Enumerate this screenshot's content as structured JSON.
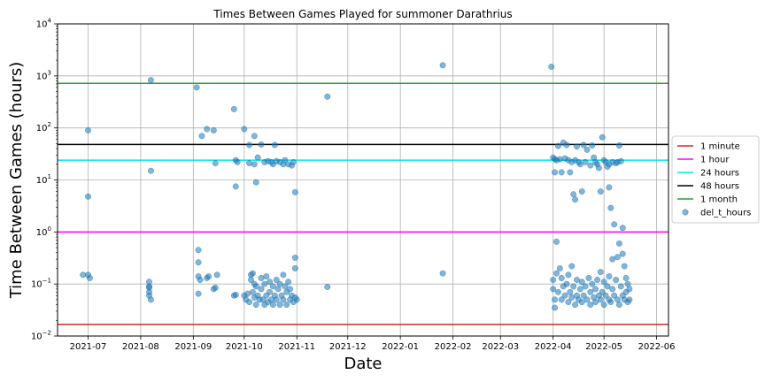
{
  "chart_data": {
    "type": "scatter",
    "title": "Times Between Games Played for summoner Darathrius",
    "xlabel": "Date",
    "ylabel": "Time Between Games (hours)",
    "yscale": "log",
    "ylim": [
      0.01,
      10000
    ],
    "xlim": [
      "2021-06-13",
      "2022-06-08"
    ],
    "grid": true,
    "legend_position": "right",
    "x_ticks": [
      "2021-07",
      "2021-08",
      "2021-09",
      "2021-10",
      "2021-11",
      "2021-12",
      "2022-01",
      "2022-02",
      "2022-03",
      "2022-04",
      "2022-05",
      "2022-06"
    ],
    "y_ticks": [
      {
        "value": 0.01,
        "base": "10",
        "exp": "−2"
      },
      {
        "value": 0.1,
        "base": "10",
        "exp": "−1"
      },
      {
        "value": 1,
        "base": "10",
        "exp": "0"
      },
      {
        "value": 10,
        "base": "10",
        "exp": "1"
      },
      {
        "value": 100,
        "base": "10",
        "exp": "2"
      },
      {
        "value": 1000,
        "base": "10",
        "exp": "3"
      },
      {
        "value": 10000,
        "base": "10",
        "exp": "4"
      }
    ],
    "reference_lines": [
      {
        "name": "1 minute",
        "y": 0.0167,
        "color": "#d62728"
      },
      {
        "name": "1 hour",
        "y": 1,
        "color": "#ff00ff"
      },
      {
        "name": "24 hours",
        "y": 24,
        "color": "#00e5ee"
      },
      {
        "name": "48 hours",
        "y": 48,
        "color": "#000000"
      },
      {
        "name": "1 month",
        "y": 720,
        "color": "#2ca02c"
      }
    ],
    "series": [
      {
        "name": "del_t_hours",
        "color": "#1f77b4",
        "points": [
          {
            "x": "2021-06-28",
            "y": 0.15
          },
          {
            "x": "2021-07-01",
            "y": 90
          },
          {
            "x": "2021-07-01",
            "y": 4.8
          },
          {
            "x": "2021-07-01",
            "y": 0.15
          },
          {
            "x": "2021-07-02",
            "y": 0.13
          },
          {
            "x": "2021-08-07",
            "y": 830
          },
          {
            "x": "2021-08-07",
            "y": 15
          },
          {
            "x": "2021-08-06",
            "y": 0.11
          },
          {
            "x": "2021-08-06",
            "y": 0.09
          },
          {
            "x": "2021-08-06",
            "y": 0.085
          },
          {
            "x": "2021-08-06",
            "y": 0.07
          },
          {
            "x": "2021-08-06",
            "y": 0.06
          },
          {
            "x": "2021-08-07",
            "y": 0.05
          },
          {
            "x": "2021-09-03",
            "y": 600
          },
          {
            "x": "2021-09-06",
            "y": 70
          },
          {
            "x": "2021-09-09",
            "y": 95
          },
          {
            "x": "2021-09-13",
            "y": 90
          },
          {
            "x": "2021-09-14",
            "y": 21
          },
          {
            "x": "2021-09-04",
            "y": 0.45
          },
          {
            "x": "2021-09-04",
            "y": 0.26
          },
          {
            "x": "2021-09-04",
            "y": 0.14
          },
          {
            "x": "2021-09-05",
            "y": 0.12
          },
          {
            "x": "2021-09-04",
            "y": 0.065
          },
          {
            "x": "2021-09-09",
            "y": 0.13
          },
          {
            "x": "2021-09-10",
            "y": 0.14
          },
          {
            "x": "2021-09-13",
            "y": 0.08
          },
          {
            "x": "2021-09-14",
            "y": 0.085
          },
          {
            "x": "2021-09-15",
            "y": 0.15
          },
          {
            "x": "2021-09-25",
            "y": 230
          },
          {
            "x": "2021-09-26",
            "y": 24
          },
          {
            "x": "2021-09-27",
            "y": 22
          },
          {
            "x": "2021-09-26",
            "y": 7.5
          },
          {
            "x": "2021-09-25",
            "y": 0.06
          },
          {
            "x": "2021-09-26",
            "y": 0.062
          },
          {
            "x": "2021-10-01",
            "y": 95
          },
          {
            "x": "2021-10-04",
            "y": 47
          },
          {
            "x": "2021-10-07",
            "y": 70
          },
          {
            "x": "2021-10-08",
            "y": 9
          },
          {
            "x": "2021-10-04",
            "y": 21
          },
          {
            "x": "2021-10-07",
            "y": 20
          },
          {
            "x": "2021-10-09",
            "y": 27
          },
          {
            "x": "2021-10-11",
            "y": 48
          },
          {
            "x": "2021-10-13",
            "y": 22
          },
          {
            "x": "2021-10-15",
            "y": 23
          },
          {
            "x": "2021-10-17",
            "y": 22
          },
          {
            "x": "2021-10-18",
            "y": 20
          },
          {
            "x": "2021-10-19",
            "y": 47
          },
          {
            "x": "2021-10-20",
            "y": 23
          },
          {
            "x": "2021-10-22",
            "y": 22
          },
          {
            "x": "2021-10-24",
            "y": 20
          },
          {
            "x": "2021-10-25",
            "y": 24
          },
          {
            "x": "2021-10-27",
            "y": 20
          },
          {
            "x": "2021-10-29",
            "y": 19
          },
          {
            "x": "2021-10-30",
            "y": 22
          },
          {
            "x": "2021-10-31",
            "y": 5.8
          },
          {
            "x": "2021-10-01",
            "y": 0.06
          },
          {
            "x": "2021-10-02",
            "y": 0.05
          },
          {
            "x": "2021-10-03",
            "y": 0.065
          },
          {
            "x": "2021-10-04",
            "y": 0.045
          },
          {
            "x": "2021-10-05",
            "y": 0.15
          },
          {
            "x": "2021-10-05",
            "y": 0.12
          },
          {
            "x": "2021-10-06",
            "y": 0.16
          },
          {
            "x": "2021-10-06",
            "y": 0.07
          },
          {
            "x": "2021-10-07",
            "y": 0.1
          },
          {
            "x": "2021-10-07",
            "y": 0.055
          },
          {
            "x": "2021-10-08",
            "y": 0.04
          },
          {
            "x": "2021-10-08",
            "y": 0.09
          },
          {
            "x": "2021-10-09",
            "y": 0.06
          },
          {
            "x": "2021-10-10",
            "y": 0.05
          },
          {
            "x": "2021-10-11",
            "y": 0.13
          },
          {
            "x": "2021-10-11",
            "y": 0.08
          },
          {
            "x": "2021-10-12",
            "y": 0.05
          },
          {
            "x": "2021-10-13",
            "y": 0.04
          },
          {
            "x": "2021-10-13",
            "y": 0.1
          },
          {
            "x": "2021-10-14",
            "y": 0.14
          },
          {
            "x": "2021-10-14",
            "y": 0.06
          },
          {
            "x": "2021-10-15",
            "y": 0.045
          },
          {
            "x": "2021-10-16",
            "y": 0.11
          },
          {
            "x": "2021-10-16",
            "y": 0.07
          },
          {
            "x": "2021-10-17",
            "y": 0.05
          },
          {
            "x": "2021-10-18",
            "y": 0.09
          },
          {
            "x": "2021-10-18",
            "y": 0.04
          },
          {
            "x": "2021-10-19",
            "y": 0.06
          },
          {
            "x": "2021-10-20",
            "y": 0.12
          },
          {
            "x": "2021-10-20",
            "y": 0.05
          },
          {
            "x": "2021-10-21",
            "y": 0.08
          },
          {
            "x": "2021-10-22",
            "y": 0.04
          },
          {
            "x": "2021-10-22",
            "y": 0.1
          },
          {
            "x": "2021-10-23",
            "y": 0.06
          },
          {
            "x": "2021-10-24",
            "y": 0.15
          },
          {
            "x": "2021-10-24",
            "y": 0.05
          },
          {
            "x": "2021-10-25",
            "y": 0.09
          },
          {
            "x": "2021-10-26",
            "y": 0.04
          },
          {
            "x": "2021-10-26",
            "y": 0.07
          },
          {
            "x": "2021-10-27",
            "y": 0.11
          },
          {
            "x": "2021-10-28",
            "y": 0.05
          },
          {
            "x": "2021-10-28",
            "y": 0.08
          },
          {
            "x": "2021-10-29",
            "y": 0.06
          },
          {
            "x": "2021-10-30",
            "y": 0.045
          },
          {
            "x": "2021-10-31",
            "y": 0.32
          },
          {
            "x": "2021-10-31",
            "y": 0.2
          },
          {
            "x": "2021-10-31",
            "y": 0.055
          },
          {
            "x": "2021-11-01",
            "y": 0.05
          },
          {
            "x": "2021-11-19",
            "y": 400
          },
          {
            "x": "2021-11-19",
            "y": 0.088
          },
          {
            "x": "2022-01-26",
            "y": 1600
          },
          {
            "x": "2022-01-26",
            "y": 0.16
          },
          {
            "x": "2022-03-31",
            "y": 1500
          },
          {
            "x": "2022-04-01",
            "y": 27
          },
          {
            "x": "2022-04-02",
            "y": 25
          },
          {
            "x": "2022-04-02",
            "y": 14
          },
          {
            "x": "2022-04-03",
            "y": 24
          },
          {
            "x": "2022-04-04",
            "y": 45
          },
          {
            "x": "2022-04-05",
            "y": 25
          },
          {
            "x": "2022-04-06",
            "y": 14
          },
          {
            "x": "2022-04-07",
            "y": 52
          },
          {
            "x": "2022-04-08",
            "y": 26
          },
          {
            "x": "2022-04-09",
            "y": 47
          },
          {
            "x": "2022-04-10",
            "y": 24
          },
          {
            "x": "2022-04-11",
            "y": 14
          },
          {
            "x": "2022-04-12",
            "y": 22
          },
          {
            "x": "2022-04-13",
            "y": 5.3
          },
          {
            "x": "2022-04-14",
            "y": 4.2
          },
          {
            "x": "2022-04-14",
            "y": 24
          },
          {
            "x": "2022-04-15",
            "y": 44
          },
          {
            "x": "2022-04-16",
            "y": 22
          },
          {
            "x": "2022-04-17",
            "y": 20
          },
          {
            "x": "2022-04-18",
            "y": 6
          },
          {
            "x": "2022-04-19",
            "y": 47
          },
          {
            "x": "2022-04-20",
            "y": 22
          },
          {
            "x": "2022-04-21",
            "y": 38
          },
          {
            "x": "2022-04-23",
            "y": 19
          },
          {
            "x": "2022-04-24",
            "y": 46
          },
          {
            "x": "2022-04-25",
            "y": 27
          },
          {
            "x": "2022-04-26",
            "y": 22
          },
          {
            "x": "2022-04-27",
            "y": 20
          },
          {
            "x": "2022-04-28",
            "y": 17
          },
          {
            "x": "2022-04-29",
            "y": 6
          },
          {
            "x": "2022-04-30",
            "y": 66
          },
          {
            "x": "2022-05-01",
            "y": 24
          },
          {
            "x": "2022-05-02",
            "y": 22
          },
          {
            "x": "2022-05-03",
            "y": 18
          },
          {
            "x": "2022-05-04",
            "y": 7.2
          },
          {
            "x": "2022-05-05",
            "y": 2.9
          },
          {
            "x": "2022-05-06",
            "y": 22
          },
          {
            "x": "2022-05-07",
            "y": 1.4
          },
          {
            "x": "2022-05-08",
            "y": 21
          },
          {
            "x": "2022-05-09",
            "y": 22
          },
          {
            "x": "2022-05-10",
            "y": 46
          },
          {
            "x": "2022-05-11",
            "y": 23
          },
          {
            "x": "2022-05-12",
            "y": 1.2
          },
          {
            "x": "2022-05-04",
            "y": 20
          },
          {
            "x": "2022-04-01",
            "y": 0.12
          },
          {
            "x": "2022-04-01",
            "y": 0.08
          },
          {
            "x": "2022-04-02",
            "y": 0.05
          },
          {
            "x": "2022-04-02",
            "y": 0.035
          },
          {
            "x": "2022-04-03",
            "y": 0.65
          },
          {
            "x": "2022-04-03",
            "y": 0.16
          },
          {
            "x": "2022-04-04",
            "y": 0.07
          },
          {
            "x": "2022-04-05",
            "y": 0.2
          },
          {
            "x": "2022-04-06",
            "y": 0.13
          },
          {
            "x": "2022-04-06",
            "y": 0.05
          },
          {
            "x": "2022-04-07",
            "y": 0.09
          },
          {
            "x": "2022-04-08",
            "y": 0.06
          },
          {
            "x": "2022-04-09",
            "y": 0.1
          },
          {
            "x": "2022-04-10",
            "y": 0.045
          },
          {
            "x": "2022-04-10",
            "y": 0.15
          },
          {
            "x": "2022-04-11",
            "y": 0.07
          },
          {
            "x": "2022-04-12",
            "y": 0.22
          },
          {
            "x": "2022-04-12",
            "y": 0.055
          },
          {
            "x": "2022-04-13",
            "y": 0.09
          },
          {
            "x": "2022-04-14",
            "y": 0.04
          },
          {
            "x": "2022-04-15",
            "y": 0.12
          },
          {
            "x": "2022-04-15",
            "y": 0.06
          },
          {
            "x": "2022-04-16",
            "y": 0.05
          },
          {
            "x": "2022-04-17",
            "y": 0.08
          },
          {
            "x": "2022-04-18",
            "y": 0.045
          },
          {
            "x": "2022-04-18",
            "y": 0.11
          },
          {
            "x": "2022-04-19",
            "y": 0.06
          },
          {
            "x": "2022-04-20",
            "y": 0.09
          },
          {
            "x": "2022-04-21",
            "y": 0.05
          },
          {
            "x": "2022-04-22",
            "y": 0.13
          },
          {
            "x": "2022-04-23",
            "y": 0.04
          },
          {
            "x": "2022-04-23",
            "y": 0.07
          },
          {
            "x": "2022-04-24",
            "y": 0.1
          },
          {
            "x": "2022-04-25",
            "y": 0.055
          },
          {
            "x": "2022-04-26",
            "y": 0.08
          },
          {
            "x": "2022-04-26",
            "y": 0.045
          },
          {
            "x": "2022-04-27",
            "y": 0.12
          },
          {
            "x": "2022-04-28",
            "y": 0.06
          },
          {
            "x": "2022-04-29",
            "y": 0.05
          },
          {
            "x": "2022-04-29",
            "y": 0.17
          },
          {
            "x": "2022-04-30",
            "y": 0.07
          },
          {
            "x": "2022-05-01",
            "y": 0.04
          },
          {
            "x": "2022-05-01",
            "y": 0.11
          },
          {
            "x": "2022-05-02",
            "y": 0.06
          },
          {
            "x": "2022-05-03",
            "y": 0.09
          },
          {
            "x": "2022-05-04",
            "y": 0.05
          },
          {
            "x": "2022-05-04",
            "y": 0.14
          },
          {
            "x": "2022-05-05",
            "y": 0.045
          },
          {
            "x": "2022-05-06",
            "y": 0.3
          },
          {
            "x": "2022-05-06",
            "y": 0.08
          },
          {
            "x": "2022-05-07",
            "y": 0.06
          },
          {
            "x": "2022-05-08",
            "y": 0.12
          },
          {
            "x": "2022-05-09",
            "y": 0.05
          },
          {
            "x": "2022-05-09",
            "y": 0.33
          },
          {
            "x": "2022-05-10",
            "y": 0.04
          },
          {
            "x": "2022-05-10",
            "y": 0.6
          },
          {
            "x": "2022-05-11",
            "y": 0.09
          },
          {
            "x": "2022-05-12",
            "y": 0.38
          },
          {
            "x": "2022-05-12",
            "y": 0.06
          },
          {
            "x": "2022-05-13",
            "y": 0.22
          },
          {
            "x": "2022-05-13",
            "y": 0.05
          },
          {
            "x": "2022-05-14",
            "y": 0.13
          },
          {
            "x": "2022-05-14",
            "y": 0.07
          },
          {
            "x": "2022-05-15",
            "y": 0.045
          },
          {
            "x": "2022-05-15",
            "y": 0.1
          },
          {
            "x": "2022-05-16",
            "y": 0.05
          },
          {
            "x": "2022-05-16",
            "y": 0.08
          }
        ]
      }
    ]
  }
}
